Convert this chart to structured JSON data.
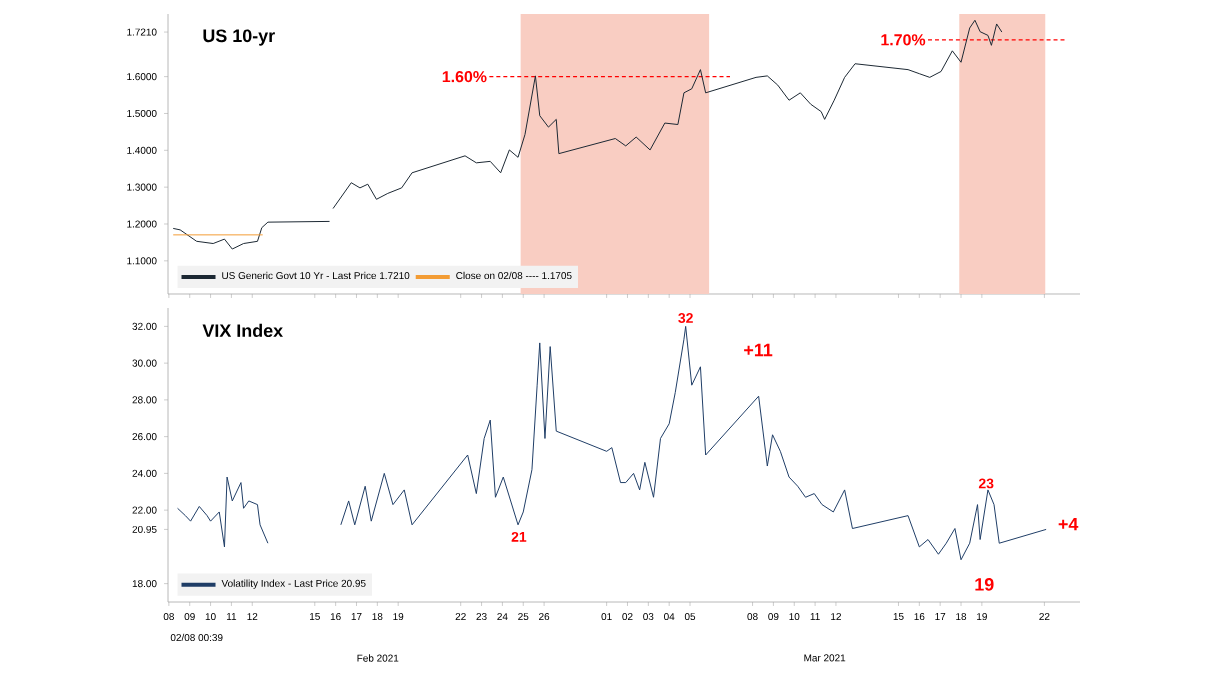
{
  "chart_data": [
    {
      "type": "line",
      "title": "US 10-yr",
      "xlim": [
        "2021-02-07T23:00",
        "2021-03-23T17:00"
      ],
      "ylim": [
        1.01,
        1.77
      ],
      "xticks": [
        {
          "value": "2021-02-08",
          "label": null
        },
        {
          "value": "2021-02-09",
          "label": null
        },
        {
          "value": "2021-02-10",
          "label": null
        },
        {
          "value": "2021-02-11",
          "label": null
        },
        {
          "value": "2021-02-12",
          "label": null
        },
        {
          "value": "2021-02-15",
          "label": null
        },
        {
          "value": "2021-02-16",
          "label": null
        },
        {
          "value": "2021-02-17",
          "label": null
        },
        {
          "value": "2021-02-18",
          "label": null
        },
        {
          "value": "2021-02-19",
          "label": null
        },
        {
          "value": "2021-02-22",
          "label": null
        },
        {
          "value": "2021-02-23",
          "label": null
        },
        {
          "value": "2021-02-24",
          "label": null
        },
        {
          "value": "2021-02-25",
          "label": null
        },
        {
          "value": "2021-02-26",
          "label": null
        },
        {
          "value": "2021-03-01",
          "label": null
        },
        {
          "value": "2021-03-02",
          "label": null
        },
        {
          "value": "2021-03-03",
          "label": null
        },
        {
          "value": "2021-03-04",
          "label": null
        },
        {
          "value": "2021-03-05",
          "label": null
        },
        {
          "value": "2021-03-08",
          "label": null
        },
        {
          "value": "2021-03-09",
          "label": null
        },
        {
          "value": "2021-03-10",
          "label": null
        },
        {
          "value": "2021-03-11",
          "label": null
        },
        {
          "value": "2021-03-12",
          "label": null
        },
        {
          "value": "2021-03-15",
          "label": null
        },
        {
          "value": "2021-03-16",
          "label": null
        },
        {
          "value": "2021-03-17",
          "label": null
        },
        {
          "value": "2021-03-18",
          "label": null
        },
        {
          "value": "2021-03-19",
          "label": null
        },
        {
          "value": "2021-03-22",
          "label": null
        }
      ],
      "yticks": [
        {
          "value": 1.1,
          "label": "1.1000"
        },
        {
          "value": 1.2,
          "label": "1.2000"
        },
        {
          "value": 1.3,
          "label": "1.3000"
        },
        {
          "value": 1.4,
          "label": "1.4000"
        },
        {
          "value": 1.5,
          "label": "1.5000"
        },
        {
          "value": 1.6,
          "label": "1.6000"
        },
        {
          "value": 1.721,
          "label": "1.7210"
        }
      ],
      "tick_labels": "y",
      "legend": "bottom left",
      "series": [
        {
          "name": "US Generic Govt 10 Yr - Last Price 1.7210",
          "color": "#1c2833",
          "x": [
            "2021-02-08T05:00",
            "2021-02-08T13:00",
            "2021-02-09T08:00",
            "2021-02-10T03:00",
            "2021-02-10T16:00",
            "2021-02-11T01:00",
            "2021-02-11T14:00",
            "2021-02-12T06:00",
            "2021-02-12T11:00",
            "2021-02-12T18:00",
            "2021-02-15T17:00",
            "2021-02-15T19:00",
            "2021-02-15T21:00",
            "2021-02-16T18:00",
            "2021-02-17T04:00",
            "2021-02-17T13:00",
            "2021-02-17T23:00",
            "2021-02-18T12:00",
            "2021-02-19T04:00",
            "2021-02-19T16:00",
            "2021-02-22T05:00",
            "2021-02-22T18:00",
            "2021-02-23T10:00",
            "2021-02-23T22:00",
            "2021-02-24T08:00",
            "2021-02-24T18:00",
            "2021-02-25T02:00",
            "2021-02-25T14:00",
            "2021-02-25T19:00",
            "2021-02-26T05:00",
            "2021-02-26T14:00",
            "2021-02-26T17:00",
            "2021-03-01T10:00",
            "2021-03-01T22:00",
            "2021-03-02T10:00",
            "2021-03-03T02:00",
            "2021-03-03T19:00",
            "2021-03-04T10:00",
            "2021-03-04T17:00",
            "2021-03-05T02:00",
            "2021-03-05T12:00",
            "2021-03-05T18:00",
            "2021-03-08T04:00",
            "2021-03-08T17:00",
            "2021-03-09T05:00",
            "2021-03-09T18:00",
            "2021-03-10T07:00",
            "2021-03-10T19:00",
            "2021-03-11T07:00",
            "2021-03-11T11:00",
            "2021-03-11T22:00",
            "2021-03-12T10:00",
            "2021-03-12T22:00",
            "2021-03-15T11:00",
            "2021-03-16T00:00",
            "2021-03-16T12:00",
            "2021-03-17T01:00",
            "2021-03-17T14:00",
            "2021-03-18T00:00",
            "2021-03-18T10:00",
            "2021-03-18T16:00",
            "2021-03-18T22:00",
            "2021-03-19T07:00",
            "2021-03-19T11:00",
            "2021-03-19T17:00",
            "2021-03-19T23:00"
          ],
          "values": [
            1.188,
            1.184,
            1.153,
            1.147,
            1.159,
            1.132,
            1.147,
            1.153,
            1.19,
            1.205,
            1.207,
            null,
            1.242,
            1.312,
            1.298,
            1.308,
            1.267,
            1.283,
            1.298,
            1.339,
            1.385,
            1.366,
            1.37,
            1.339,
            1.401,
            1.381,
            1.443,
            1.602,
            1.494,
            1.463,
            1.484,
            1.391,
            1.432,
            1.412,
            1.436,
            1.401,
            1.474,
            1.47,
            1.556,
            1.567,
            1.619,
            1.556,
            1.598,
            1.602,
            1.577,
            1.536,
            1.556,
            1.525,
            1.505,
            1.484,
            1.536,
            1.598,
            1.635,
            1.619,
            1.608,
            1.598,
            1.614,
            1.67,
            1.639,
            1.732,
            1.753,
            1.722,
            1.712,
            1.685,
            1.743,
            1.721
          ]
        },
        {
          "name": "Close on 02/08 ---- 1.1705",
          "color": "#f39c34",
          "x": [
            "2021-02-08T05:00",
            "2021-02-12T12:00"
          ],
          "values": [
            1.1705,
            1.1705
          ]
        }
      ],
      "bands": [
        {
          "axis": "x",
          "from": "2021-02-24T21:00",
          "to": "2021-03-05T22:00",
          "color": "#f9cdc2"
        },
        {
          "axis": "x",
          "from": "2021-03-17T22:00",
          "to": "2021-03-22T01:00",
          "color": "#f9cdc2"
        }
      ],
      "ref_lines": [
        {
          "axis": "y",
          "value": 1.6,
          "label": "1.60%",
          "color": "#ff0000",
          "line_style": "dashed"
        },
        {
          "axis": "y",
          "value": 1.7,
          "label": "1.70%",
          "color": "#ff0000",
          "line_style": "dashed"
        }
      ]
    },
    {
      "type": "line",
      "title": "VIX Index",
      "xlim": [
        "2021-02-07T23:00",
        "2021-03-23T17:00"
      ],
      "ylim": [
        17.0,
        33.0
      ],
      "xticks": [
        {
          "value": "2021-02-08",
          "label": "08"
        },
        {
          "value": "2021-02-09",
          "label": "09"
        },
        {
          "value": "2021-02-10",
          "label": "10"
        },
        {
          "value": "2021-02-11",
          "label": "11"
        },
        {
          "value": "2021-02-12",
          "label": "12"
        },
        {
          "value": "2021-02-15",
          "label": "15"
        },
        {
          "value": "2021-02-16",
          "label": "16"
        },
        {
          "value": "2021-02-17",
          "label": "17"
        },
        {
          "value": "2021-02-18",
          "label": "18"
        },
        {
          "value": "2021-02-19",
          "label": "19"
        },
        {
          "value": "2021-02-22",
          "label": "22"
        },
        {
          "value": "2021-02-23",
          "label": "23"
        },
        {
          "value": "2021-02-24",
          "label": "24"
        },
        {
          "value": "2021-02-25",
          "label": "25"
        },
        {
          "value": "2021-02-26",
          "label": "26"
        },
        {
          "value": "2021-03-01",
          "label": "01"
        },
        {
          "value": "2021-03-02",
          "label": "02"
        },
        {
          "value": "2021-03-03",
          "label": "03"
        },
        {
          "value": "2021-03-04",
          "label": "04"
        },
        {
          "value": "2021-03-05",
          "label": "05"
        },
        {
          "value": "2021-03-08",
          "label": "08"
        },
        {
          "value": "2021-03-09",
          "label": "09"
        },
        {
          "value": "2021-03-10",
          "label": "10"
        },
        {
          "value": "2021-03-11",
          "label": "11"
        },
        {
          "value": "2021-03-12",
          "label": "12"
        },
        {
          "value": "2021-03-15",
          "label": "15"
        },
        {
          "value": "2021-03-16",
          "label": "16"
        },
        {
          "value": "2021-03-17",
          "label": "17"
        },
        {
          "value": "2021-03-18",
          "label": "18"
        },
        {
          "value": "2021-03-19",
          "label": "19"
        },
        {
          "value": "2021-03-22",
          "label": "22"
        }
      ],
      "yticks": [
        {
          "value": 18,
          "label": "18.00"
        },
        {
          "value": 20.95,
          "label": "20.95"
        },
        {
          "value": 22,
          "label": "22.00"
        },
        {
          "value": 24,
          "label": "24.00"
        },
        {
          "value": 26,
          "label": "26.00"
        },
        {
          "value": 28,
          "label": "28.00"
        },
        {
          "value": 30,
          "label": "30.00"
        },
        {
          "value": 32,
          "label": "32.00"
        }
      ],
      "legend": "bottom left",
      "series": [
        {
          "name": "Volatility Index - Last Price 20.95",
          "color": "#1f3d66",
          "x": [
            "2021-02-08T10:00",
            "2021-02-08T19:00",
            "2021-02-09T01:00",
            "2021-02-09T11:00",
            "2021-02-09T20:00",
            "2021-02-10T00:00",
            "2021-02-10T10:00",
            "2021-02-10T16:00",
            "2021-02-10T19:00",
            "2021-02-11T01:00",
            "2021-02-11T11:00",
            "2021-02-11T14:00",
            "2021-02-11T20:00",
            "2021-02-12T06:00",
            "2021-02-12T09:00",
            "2021-02-12T18:00",
            "2021-02-15T12:00",
            "2021-02-16T06:00",
            "2021-02-16T15:00",
            "2021-02-16T22:00",
            "2021-02-17T10:00",
            "2021-02-17T17:00",
            "2021-02-18T08:00",
            "2021-02-18T18:00",
            "2021-02-19T07:00",
            "2021-02-19T16:00",
            "2021-02-22T08:00",
            "2021-02-22T18:00",
            "2021-02-23T03:00",
            "2021-02-23T10:00",
            "2021-02-23T16:00",
            "2021-02-24T01:00",
            "2021-02-24T18:00",
            "2021-02-25T00:00",
            "2021-02-25T10:00",
            "2021-02-25T16:00",
            "2021-02-25T19:00",
            "2021-02-26T01:00",
            "2021-02-26T07:00",
            "2021-02-26T14:00",
            "2021-03-01T00:00",
            "2021-03-01T06:00",
            "2021-03-01T16:00",
            "2021-03-01T22:00",
            "2021-03-02T07:00",
            "2021-03-02T14:00",
            "2021-03-02T20:00",
            "2021-03-03T06:00",
            "2021-03-03T14:00",
            "2021-03-04T00:00",
            "2021-03-04T07:00",
            "2021-03-04T17:00",
            "2021-03-04T19:00",
            "2021-03-05T02:00",
            "2021-03-05T12:00",
            "2021-03-05T18:00",
            "2021-03-08T07:00",
            "2021-03-08T17:00",
            "2021-03-08T23:00",
            "2021-03-09T08:00",
            "2021-03-09T18:00",
            "2021-03-10T04:00",
            "2021-03-10T13:00",
            "2021-03-10T23:00",
            "2021-03-11T08:00",
            "2021-03-11T21:00",
            "2021-03-12T10:00",
            "2021-03-12T19:00",
            "2021-03-15T11:00",
            "2021-03-16T00:00",
            "2021-03-16T10:00",
            "2021-03-16T22:00",
            "2021-03-17T07:00",
            "2021-03-17T17:00",
            "2021-03-18T00:00",
            "2021-03-18T10:00",
            "2021-03-18T19:00",
            "2021-03-18T22:00",
            "2021-03-19T07:00",
            "2021-03-19T14:00",
            "2021-03-19T20:00",
            "2021-03-22T02:00"
          ],
          "values": [
            22.1,
            21.7,
            21.4,
            22.2,
            21.7,
            21.4,
            21.9,
            20.0,
            23.8,
            22.5,
            23.5,
            22.1,
            22.5,
            22.3,
            21.2,
            20.2,
            null,
            21.2,
            22.5,
            21.2,
            23.3,
            21.4,
            24.0,
            22.3,
            23.1,
            21.2,
            25.0,
            22.9,
            25.9,
            26.9,
            22.7,
            23.8,
            21.2,
            21.9,
            24.2,
            28.8,
            31.1,
            25.9,
            30.9,
            26.3,
            25.2,
            25.4,
            23.5,
            23.5,
            24.0,
            23.1,
            24.6,
            22.7,
            25.9,
            26.7,
            28.4,
            31.3,
            32.0,
            28.8,
            29.8,
            25.0,
            28.2,
            24.4,
            26.1,
            25.2,
            23.8,
            23.3,
            22.7,
            22.9,
            22.3,
            21.9,
            23.1,
            21.0,
            21.7,
            20.0,
            20.4,
            19.6,
            20.2,
            21.0,
            19.3,
            20.2,
            22.3,
            20.4,
            23.1,
            22.3,
            20.2,
            20.95
          ]
        }
      ],
      "annotations": [
        {
          "text": "32",
          "x": "2021-03-04T19:00",
          "y": 32
        },
        {
          "text": "21",
          "x": "2021-02-24T19:00",
          "y": 21
        },
        {
          "text": "23",
          "x": "2021-03-19T05:00",
          "y": 23
        },
        "+11",
        "19",
        "+4",
        "02/08 00:39",
        "Feb 2021",
        "Mar 2021"
      ]
    }
  ]
}
